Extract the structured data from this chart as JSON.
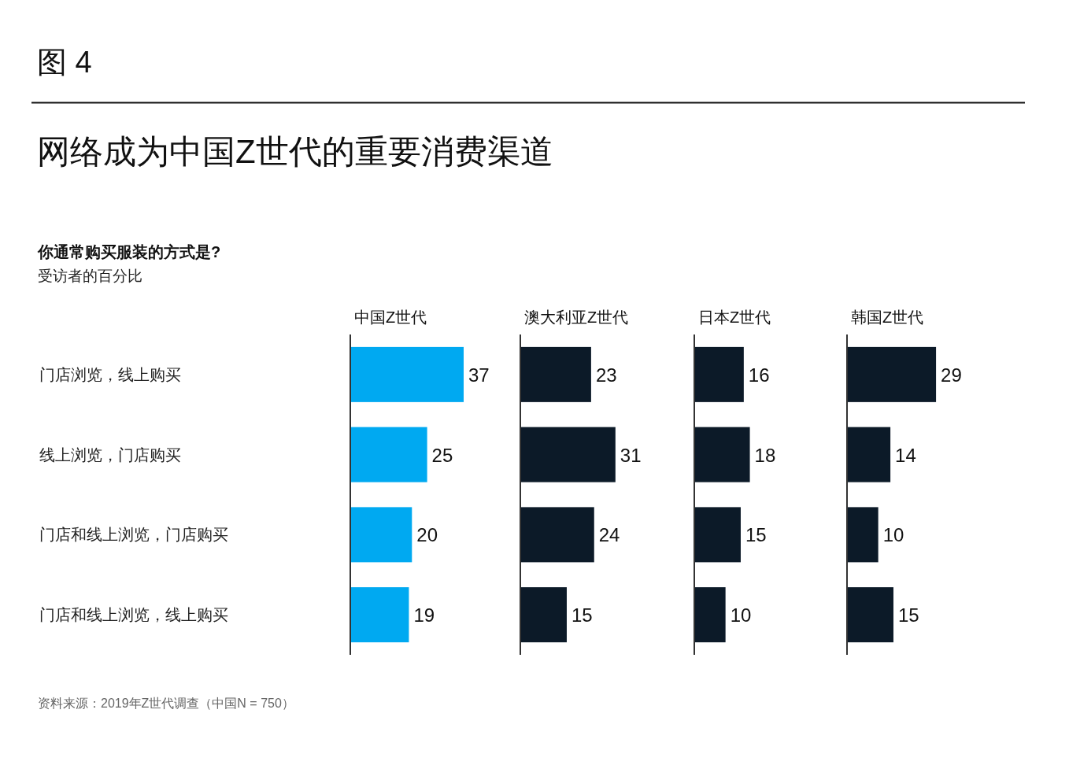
{
  "chart_data": [
    {
      "type": "bar",
      "orientation": "horizontal",
      "title": "中国Z世代",
      "categories": [
        "门店浏览，线上购买",
        "线上浏览，门店购买",
        "门店和线上浏览，门店购买",
        "门店和线上浏览，线上购买"
      ],
      "values": [
        37,
        25,
        20,
        19
      ],
      "color": "#00a9f1",
      "data_labels": true,
      "annotations": [
        "图 4",
        "网络成为中国Z世代的重要消费渠道",
        "你通常购买服装的方式是?",
        "受访者的百分比",
        "资料来源：2019年Z世代调查（中国N = 750）"
      ]
    },
    {
      "type": "bar",
      "orientation": "horizontal",
      "title": "澳大利亚Z世代",
      "values": [
        23,
        31,
        24,
        15
      ],
      "color": "#0c1a28",
      "data_labels": true
    },
    {
      "type": "bar",
      "orientation": "horizontal",
      "title": "日本Z世代",
      "values": [
        16,
        18,
        15,
        10
      ],
      "color": "#0c1a28",
      "data_labels": true
    },
    {
      "type": "bar",
      "orientation": "horizontal",
      "title": "韩国Z世代",
      "values": [
        29,
        14,
        10,
        15
      ],
      "color": "#0c1a28",
      "data_labels": true
    }
  ]
}
